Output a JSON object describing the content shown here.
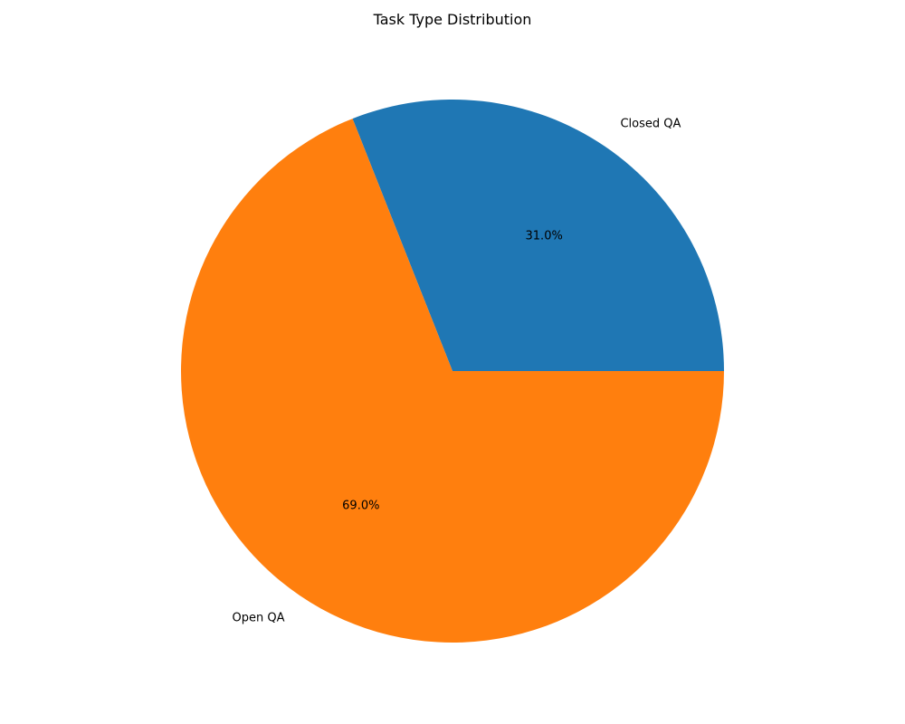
{
  "chart_data": {
    "type": "pie",
    "title": "Task Type Distribution",
    "slices": [
      {
        "label": "Closed QA",
        "value": 31.0,
        "pct_label": "31.0%",
        "color": "#1f77b4"
      },
      {
        "label": "Open QA",
        "value": 69.0,
        "pct_label": "69.0%",
        "color": "#ff7f0e"
      }
    ],
    "start_angle_deg": 0,
    "direction": "counterclockwise",
    "legend": "none"
  }
}
